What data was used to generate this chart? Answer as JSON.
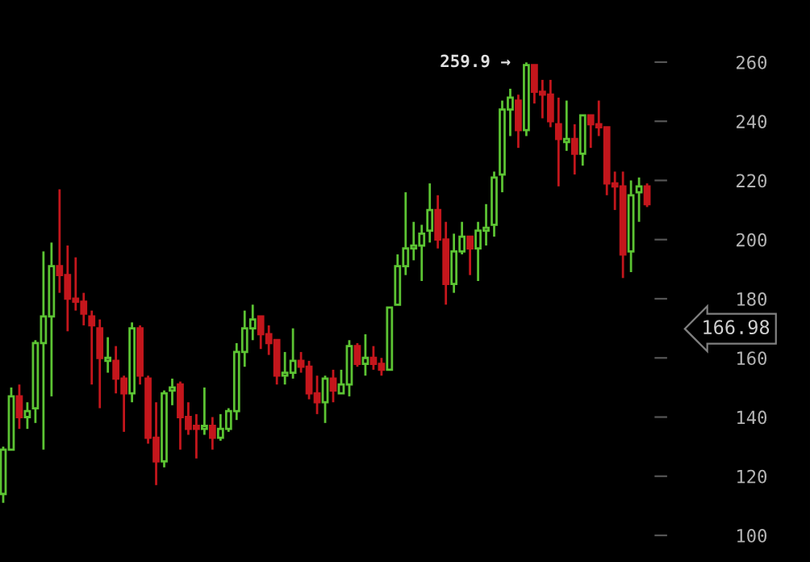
{
  "chart_data": {
    "type": "candlestick",
    "categories": [
      null,
      null,
      null,
      null,
      null,
      null,
      null,
      null,
      null,
      null,
      null,
      null,
      null,
      null,
      null,
      null,
      null,
      null,
      null,
      null,
      null,
      null,
      null,
      null,
      null,
      null,
      null,
      null,
      null,
      null,
      null,
      null,
      null,
      null,
      null,
      null,
      null,
      null,
      null,
      null,
      null,
      null,
      null,
      null,
      null,
      null,
      null,
      null,
      null,
      null,
      null,
      null,
      null,
      null,
      null,
      null,
      null,
      null,
      null,
      null,
      null,
      null,
      null,
      null,
      null,
      null,
      null,
      null,
      null,
      null,
      null,
      null,
      null,
      null,
      null,
      null,
      null,
      null,
      null,
      null,
      null
    ],
    "ohlc": [
      [
        114,
        130,
        111,
        129
      ],
      [
        129,
        150,
        129,
        147
      ],
      [
        147,
        151,
        136,
        140
      ],
      [
        140,
        145,
        136,
        142
      ],
      [
        143,
        166,
        138,
        165
      ],
      [
        165,
        196,
        129,
        174
      ],
      [
        174,
        199,
        147,
        191
      ],
      [
        191,
        217,
        182,
        188
      ],
      [
        188,
        198,
        169,
        180
      ],
      [
        180,
        194,
        176,
        179
      ],
      [
        179,
        182,
        171,
        175
      ],
      [
        174,
        176,
        151,
        171
      ],
      [
        170,
        173,
        143,
        160
      ],
      [
        159,
        167,
        155,
        160
      ],
      [
        159,
        164,
        148,
        153
      ],
      [
        153,
        154,
        135,
        148
      ],
      [
        148,
        172,
        145,
        170
      ],
      [
        170,
        171,
        151,
        154
      ],
      [
        153,
        154,
        131,
        133
      ],
      [
        133,
        145,
        117,
        125
      ],
      [
        125,
        149,
        123,
        148
      ],
      [
        149,
        153,
        144,
        150
      ],
      [
        151,
        152,
        129,
        140
      ],
      [
        140,
        145,
        134,
        136
      ],
      [
        137,
        141,
        126,
        136
      ],
      [
        136,
        150,
        134,
        137
      ],
      [
        137,
        140,
        129,
        133
      ],
      [
        133,
        141,
        132,
        136
      ],
      [
        136,
        143,
        135,
        142
      ],
      [
        142,
        165,
        139,
        162
      ],
      [
        162,
        176,
        157,
        170
      ],
      [
        170,
        178,
        166,
        173
      ],
      [
        174,
        174,
        163,
        168
      ],
      [
        168,
        171,
        161,
        165
      ],
      [
        166,
        166,
        151,
        154
      ],
      [
        154,
        162,
        151,
        155
      ],
      [
        155,
        170,
        153,
        159
      ],
      [
        159,
        162,
        155,
        157
      ],
      [
        157,
        159,
        146,
        148
      ],
      [
        148,
        154,
        141,
        145
      ],
      [
        145,
        154,
        138,
        153
      ],
      [
        153,
        156,
        145,
        149
      ],
      [
        148,
        156,
        148,
        151
      ],
      [
        151,
        166,
        147,
        164
      ],
      [
        164,
        165,
        157,
        158
      ],
      [
        158,
        168,
        154,
        160
      ],
      [
        160,
        164,
        156,
        158
      ],
      [
        158,
        160,
        154,
        156
      ],
      [
        156,
        177,
        156,
        177
      ],
      [
        178,
        195,
        178,
        191
      ],
      [
        191,
        216,
        188,
        197
      ],
      [
        197,
        206,
        193,
        198
      ],
      [
        198,
        205,
        186,
        202
      ],
      [
        203,
        219,
        199,
        210
      ],
      [
        210,
        215,
        197,
        200
      ],
      [
        200,
        206,
        178,
        185
      ],
      [
        185,
        202,
        182,
        196
      ],
      [
        196,
        206,
        195,
        201
      ],
      [
        201,
        201,
        188,
        197
      ],
      [
        197,
        206,
        186,
        203
      ],
      [
        203,
        212,
        198,
        204
      ],
      [
        205,
        223,
        201,
        221
      ],
      [
        222,
        247,
        216,
        244
      ],
      [
        244,
        251,
        235,
        248
      ],
      [
        247,
        249,
        231,
        237
      ],
      [
        237,
        259.9,
        235,
        259
      ],
      [
        259,
        259,
        246,
        250
      ],
      [
        250,
        254,
        241,
        249
      ],
      [
        249,
        254,
        238,
        240
      ],
      [
        239,
        248,
        218,
        234
      ],
      [
        233,
        247,
        230,
        234
      ],
      [
        234,
        239,
        222,
        229
      ],
      [
        229,
        242,
        225,
        242
      ],
      [
        242,
        242,
        231,
        239
      ],
      [
        239,
        247,
        235,
        238
      ],
      [
        238,
        238,
        215,
        219
      ],
      [
        219,
        223,
        210,
        218
      ],
      [
        218,
        223,
        187,
        195
      ],
      [
        196,
        220,
        189,
        215
      ],
      [
        216,
        221,
        206,
        218
      ],
      [
        218,
        219,
        211,
        212
      ]
    ],
    "colors": [
      "#5cc433",
      "#5cc433",
      "#c4161c",
      "#5cc433",
      "#5cc433",
      "#5cc433",
      "#5cc433",
      "#c4161c",
      "#c4161c",
      "#c4161c",
      "#c4161c",
      "#c4161c",
      "#c4161c",
      "#5cc433",
      "#c4161c",
      "#c4161c",
      "#5cc433",
      "#c4161c",
      "#c4161c",
      "#c4161c",
      "#5cc433",
      "#5cc433",
      "#c4161c",
      "#c4161c",
      "#c4161c",
      "#5cc433",
      "#c4161c",
      "#5cc433",
      "#5cc433",
      "#5cc433",
      "#5cc433",
      "#5cc433",
      "#c4161c",
      "#c4161c",
      "#c4161c",
      "#5cc433",
      "#5cc433",
      "#c4161c",
      "#c4161c",
      "#c4161c",
      "#5cc433",
      "#c4161c",
      "#5cc433",
      "#5cc433",
      "#c4161c",
      "#5cc433",
      "#c4161c",
      "#c4161c",
      "#5cc433",
      "#5cc433",
      "#5cc433",
      "#5cc433",
      "#5cc433",
      "#5cc433",
      "#c4161c",
      "#c4161c",
      "#5cc433",
      "#5cc433",
      "#c4161c",
      "#5cc433",
      "#5cc433",
      "#5cc433",
      "#5cc433",
      "#5cc433",
      "#c4161c",
      "#5cc433",
      "#c4161c",
      "#c4161c",
      "#c4161c",
      "#c4161c",
      "#5cc433",
      "#c4161c",
      "#5cc433",
      "#c4161c",
      "#c4161c",
      "#c4161c",
      "#c4161c",
      "#c4161c",
      "#5cc433",
      "#5cc433",
      "#c4161c"
    ],
    "ylim": [
      91,
      281
    ],
    "yticks": [
      100,
      120,
      140,
      160,
      180,
      200,
      220,
      240,
      260
    ],
    "annotations": [
      "259.9 →",
      "166.98"
    ],
    "grid": false,
    "legend": false
  }
}
